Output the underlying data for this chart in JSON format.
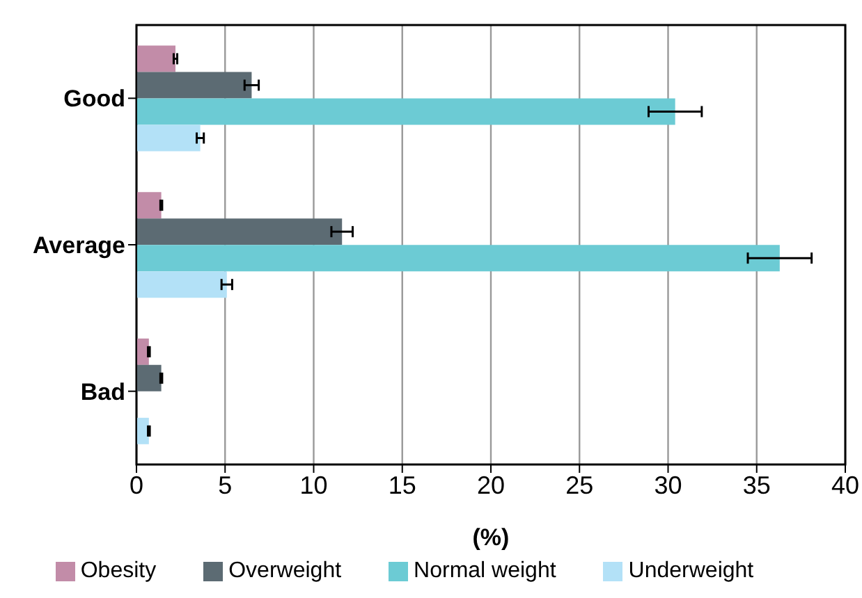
{
  "chart_data": {
    "type": "bar",
    "orientation": "horizontal",
    "xlabel": "(%)",
    "categories": [
      "Good",
      "Average",
      "Bad"
    ],
    "series": [
      {
        "name": "Obesity",
        "color": "#c28ca8",
        "values": [
          2.2,
          1.4,
          0.7
        ],
        "errors": [
          0.1,
          0.05,
          0.05
        ]
      },
      {
        "name": "Overweight",
        "color": "#5c6b73",
        "values": [
          6.5,
          11.6,
          1.4
        ],
        "errors": [
          0.4,
          0.6,
          0.05
        ]
      },
      {
        "name": "Normal weight",
        "color": "#6ccbd4",
        "values": [
          30.4,
          36.3,
          null
        ],
        "errors": [
          1.5,
          1.8,
          null
        ]
      },
      {
        "name": "Underweight",
        "color": "#b3e1f7",
        "values": [
          3.6,
          5.1,
          0.7
        ],
        "errors": [
          0.2,
          0.3,
          0.05
        ]
      }
    ],
    "xlim": [
      0,
      40
    ],
    "xticks": [
      0,
      5,
      10,
      15,
      20,
      25,
      30,
      35,
      40
    ],
    "grid": "x",
    "legend": "bottom"
  }
}
